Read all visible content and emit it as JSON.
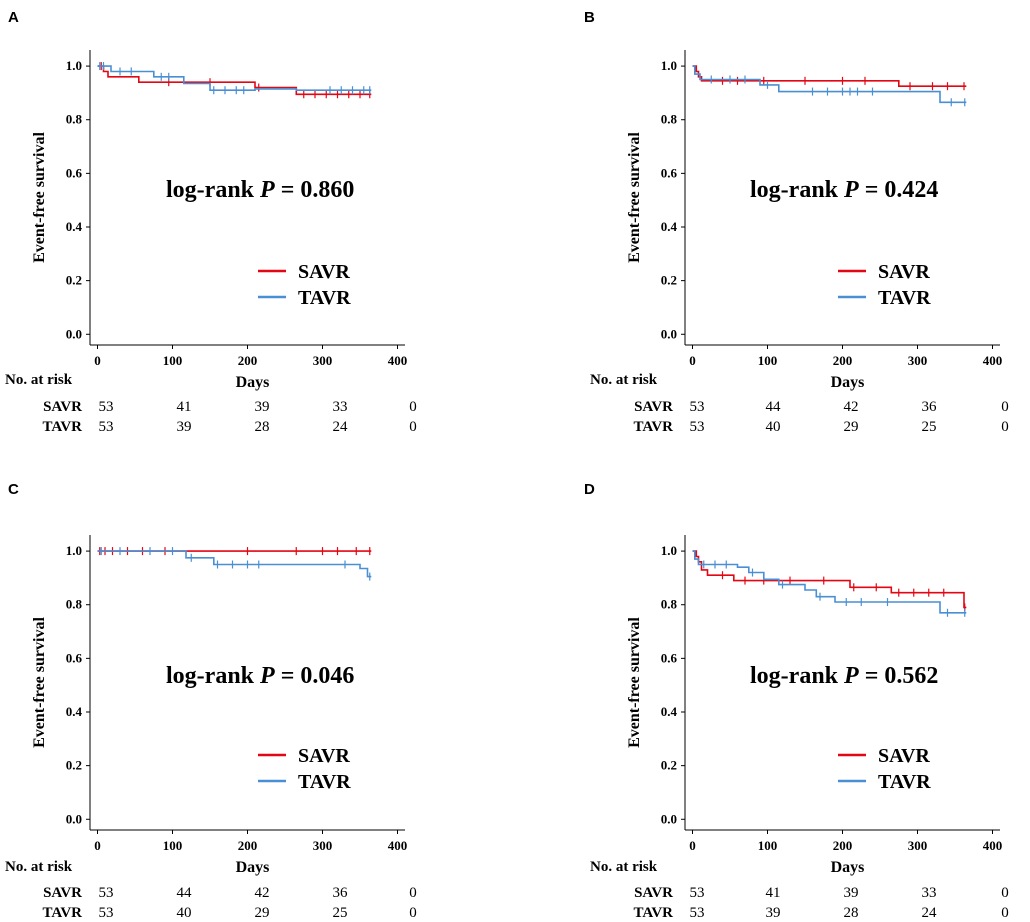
{
  "figure": {
    "y_axis_label": "Event-free survival",
    "x_axis_label": "Days",
    "risk_table_title": "No. at risk",
    "groups": [
      "SAVR",
      "TAVR"
    ],
    "colors": {
      "SAVR": "#e30613",
      "TAVR": "#4a8fd4"
    }
  },
  "chart_data": [
    {
      "panel": "A",
      "type": "line",
      "subtype": "kaplan-meier",
      "xlabel": "Days",
      "ylabel": "Event-free survival",
      "xlim": [
        -10,
        410
      ],
      "ylim": [
        -0.04,
        1.06
      ],
      "x_ticks": [
        "0",
        "100",
        "200",
        "300",
        "400"
      ],
      "y_ticks": [
        "0.0",
        "0.2",
        "0.4",
        "0.6",
        "0.8",
        "1.0"
      ],
      "annotation": {
        "prefix": "log-rank ",
        "p": "P",
        "rest": " = 0.860"
      },
      "legend": [
        "SAVR",
        "TAVR"
      ],
      "series": [
        {
          "name": "SAVR",
          "steps": [
            [
              0,
              1.0
            ],
            [
              8,
              0.98
            ],
            [
              14,
              0.96
            ],
            [
              55,
              0.94
            ],
            [
              210,
              0.92
            ],
            [
              265,
              0.895
            ],
            [
              365,
              0.895
            ]
          ],
          "censored": [
            [
              5,
              1.0
            ],
            [
              95,
              0.94
            ],
            [
              150,
              0.94
            ],
            [
              215,
              0.92
            ],
            [
              275,
              0.895
            ],
            [
              290,
              0.895
            ],
            [
              305,
              0.895
            ],
            [
              320,
              0.895
            ],
            [
              335,
              0.895
            ],
            [
              350,
              0.895
            ],
            [
              363,
              0.895
            ]
          ]
        },
        {
          "name": "TAVR",
          "steps": [
            [
              0,
              1.0
            ],
            [
              18,
              0.98
            ],
            [
              60,
              0.98
            ],
            [
              75,
              0.96
            ],
            [
              115,
              0.935
            ],
            [
              150,
              0.91
            ],
            [
              210,
              0.915
            ],
            [
              265,
              0.91
            ],
            [
              365,
              0.91
            ]
          ],
          "censored": [
            [
              3,
              1.0
            ],
            [
              8,
              1.0
            ],
            [
              30,
              0.98
            ],
            [
              45,
              0.98
            ],
            [
              85,
              0.96
            ],
            [
              95,
              0.96
            ],
            [
              155,
              0.91
            ],
            [
              170,
              0.91
            ],
            [
              185,
              0.91
            ],
            [
              195,
              0.91
            ],
            [
              310,
              0.91
            ],
            [
              325,
              0.91
            ],
            [
              340,
              0.91
            ],
            [
              355,
              0.91
            ],
            [
              363,
              0.91
            ]
          ]
        }
      ],
      "at_risk": {
        "SAVR": [
          "53",
          "41",
          "39",
          "33",
          "0"
        ],
        "TAVR": [
          "53",
          "39",
          "28",
          "24",
          "0"
        ]
      }
    },
    {
      "panel": "B",
      "type": "line",
      "subtype": "kaplan-meier",
      "xlabel": "Days",
      "ylabel": "Event-free survival",
      "xlim": [
        -10,
        410
      ],
      "ylim": [
        -0.04,
        1.06
      ],
      "x_ticks": [
        "0",
        "100",
        "200",
        "300",
        "400"
      ],
      "y_ticks": [
        "0.0",
        "0.2",
        "0.4",
        "0.6",
        "0.8",
        "1.0"
      ],
      "annotation": {
        "prefix": "log-rank ",
        "p": "P",
        "rest": " = 0.424"
      },
      "legend": [
        "SAVR",
        "TAVR"
      ],
      "series": [
        {
          "name": "SAVR",
          "steps": [
            [
              0,
              1.0
            ],
            [
              5,
              0.98
            ],
            [
              8,
              0.96
            ],
            [
              12,
              0.945
            ],
            [
              270,
              0.945
            ],
            [
              275,
              0.925
            ],
            [
              365,
              0.925
            ]
          ],
          "censored": [
            [
              40,
              0.945
            ],
            [
              60,
              0.945
            ],
            [
              95,
              0.945
            ],
            [
              150,
              0.945
            ],
            [
              200,
              0.945
            ],
            [
              230,
              0.945
            ],
            [
              290,
              0.925
            ],
            [
              320,
              0.925
            ],
            [
              340,
              0.925
            ],
            [
              362,
              0.925
            ]
          ]
        },
        {
          "name": "TAVR",
          "steps": [
            [
              0,
              1.0
            ],
            [
              3,
              0.97
            ],
            [
              10,
              0.95
            ],
            [
              90,
              0.93
            ],
            [
              115,
              0.905
            ],
            [
              330,
              0.865
            ],
            [
              365,
              0.865
            ]
          ],
          "censored": [
            [
              25,
              0.95
            ],
            [
              50,
              0.95
            ],
            [
              70,
              0.95
            ],
            [
              100,
              0.93
            ],
            [
              160,
              0.905
            ],
            [
              180,
              0.905
            ],
            [
              200,
              0.905
            ],
            [
              210,
              0.905
            ],
            [
              220,
              0.905
            ],
            [
              240,
              0.905
            ],
            [
              345,
              0.865
            ],
            [
              363,
              0.865
            ]
          ]
        }
      ],
      "at_risk": {
        "SAVR": [
          "53",
          "44",
          "42",
          "36",
          "0"
        ],
        "TAVR": [
          "53",
          "40",
          "29",
          "25",
          "0"
        ]
      }
    },
    {
      "panel": "C",
      "type": "line",
      "subtype": "kaplan-meier",
      "xlabel": "Days",
      "ylabel": "Event-free survival",
      "xlim": [
        -10,
        410
      ],
      "ylim": [
        -0.04,
        1.06
      ],
      "x_ticks": [
        "0",
        "100",
        "200",
        "300",
        "400"
      ],
      "y_ticks": [
        "0.0",
        "0.2",
        "0.4",
        "0.6",
        "0.8",
        "1.0"
      ],
      "annotation": {
        "prefix": "log-rank ",
        "p": "P",
        "rest": " = 0.046"
      },
      "legend": [
        "SAVR",
        "TAVR"
      ],
      "series": [
        {
          "name": "SAVR",
          "steps": [
            [
              0,
              1.0
            ],
            [
              365,
              1.0
            ]
          ],
          "censored": [
            [
              3,
              1.0
            ],
            [
              10,
              1.0
            ],
            [
              20,
              1.0
            ],
            [
              40,
              1.0
            ],
            [
              60,
              1.0
            ],
            [
              90,
              1.0
            ],
            [
              200,
              1.0
            ],
            [
              265,
              1.0
            ],
            [
              300,
              1.0
            ],
            [
              320,
              1.0
            ],
            [
              345,
              1.0
            ],
            [
              363,
              1.0
            ]
          ]
        },
        {
          "name": "TAVR",
          "steps": [
            [
              0,
              1.0
            ],
            [
              118,
              0.975
            ],
            [
              155,
              0.95
            ],
            [
              350,
              0.935
            ],
            [
              360,
              0.905
            ],
            [
              365,
              0.905
            ]
          ],
          "censored": [
            [
              5,
              1.0
            ],
            [
              30,
              1.0
            ],
            [
              70,
              1.0
            ],
            [
              100,
              1.0
            ],
            [
              125,
              0.975
            ],
            [
              160,
              0.95
            ],
            [
              180,
              0.95
            ],
            [
              200,
              0.95
            ],
            [
              215,
              0.95
            ],
            [
              330,
              0.95
            ],
            [
              363,
              0.905
            ]
          ]
        }
      ],
      "at_risk": {
        "SAVR": [
          "53",
          "44",
          "42",
          "36",
          "0"
        ],
        "TAVR": [
          "53",
          "40",
          "29",
          "25",
          "0"
        ]
      }
    },
    {
      "panel": "D",
      "type": "line",
      "subtype": "kaplan-meier",
      "xlabel": "Days",
      "ylabel": "Event-free survival",
      "xlim": [
        -10,
        410
      ],
      "ylim": [
        -0.04,
        1.06
      ],
      "x_ticks": [
        "0",
        "100",
        "200",
        "300",
        "400"
      ],
      "y_ticks": [
        "0.0",
        "0.2",
        "0.4",
        "0.6",
        "0.8",
        "1.0"
      ],
      "annotation": {
        "prefix": "log-rank ",
        "p": "P",
        "rest": " = 0.562"
      },
      "legend": [
        "SAVR",
        "TAVR"
      ],
      "series": [
        {
          "name": "SAVR",
          "steps": [
            [
              0,
              1.0
            ],
            [
              5,
              0.98
            ],
            [
              8,
              0.96
            ],
            [
              12,
              0.93
            ],
            [
              20,
              0.91
            ],
            [
              55,
              0.89
            ],
            [
              210,
              0.865
            ],
            [
              265,
              0.845
            ],
            [
              360,
              0.845
            ],
            [
              362,
              0.79
            ],
            [
              365,
              0.79
            ]
          ],
          "censored": [
            [
              40,
              0.91
            ],
            [
              70,
              0.89
            ],
            [
              95,
              0.89
            ],
            [
              130,
              0.89
            ],
            [
              175,
              0.89
            ],
            [
              215,
              0.865
            ],
            [
              245,
              0.865
            ],
            [
              275,
              0.845
            ],
            [
              295,
              0.845
            ],
            [
              315,
              0.845
            ],
            [
              335,
              0.845
            ],
            [
              363,
              0.79
            ]
          ]
        },
        {
          "name": "TAVR",
          "steps": [
            [
              0,
              1.0
            ],
            [
              3,
              0.97
            ],
            [
              8,
              0.95
            ],
            [
              60,
              0.94
            ],
            [
              75,
              0.92
            ],
            [
              95,
              0.895
            ],
            [
              115,
              0.875
            ],
            [
              150,
              0.855
            ],
            [
              165,
              0.83
            ],
            [
              190,
              0.81
            ],
            [
              330,
              0.77
            ],
            [
              365,
              0.77
            ]
          ],
          "censored": [
            [
              15,
              0.95
            ],
            [
              30,
              0.95
            ],
            [
              45,
              0.95
            ],
            [
              80,
              0.92
            ],
            [
              120,
              0.875
            ],
            [
              170,
              0.83
            ],
            [
              205,
              0.81
            ],
            [
              225,
              0.81
            ],
            [
              260,
              0.81
            ],
            [
              340,
              0.77
            ],
            [
              363,
              0.77
            ]
          ]
        }
      ],
      "at_risk": {
        "SAVR": [
          "53",
          "41",
          "39",
          "33",
          "0"
        ],
        "TAVR": [
          "53",
          "39",
          "28",
          "24",
          "0"
        ]
      }
    }
  ]
}
